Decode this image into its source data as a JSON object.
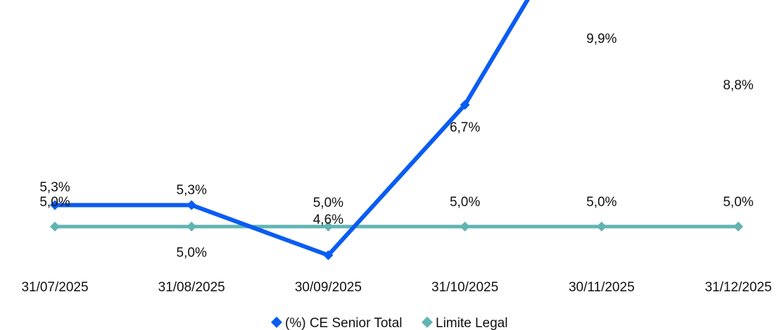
{
  "chart_data": {
    "type": "line",
    "categories": [
      "31/07/2025",
      "31/08/2025",
      "30/09/2025",
      "31/10/2025",
      "30/11/2025",
      "31/12/2025"
    ],
    "series": [
      {
        "name": "(%) CE Senior Total",
        "values": [
          5.3,
          5.3,
          4.6,
          6.7,
          9.9,
          8.8
        ],
        "labels": [
          "5,3%",
          "5,3%",
          "4,6%",
          "6,7%",
          "9,9%",
          "8,8%"
        ],
        "color": "#0a5cf2"
      },
      {
        "name": "Limite Legal",
        "values": [
          5.0,
          5.0,
          5.0,
          5.0,
          5.0,
          5.0
        ],
        "labels": [
          "5,0%",
          "5,0%",
          "5,0%",
          "5,0%",
          "5,0%",
          "5,0%"
        ],
        "color": "#62b3b3"
      }
    ],
    "legend_position": "bottom-center",
    "grid": false,
    "title": "",
    "xlabel": "",
    "ylabel": ""
  }
}
